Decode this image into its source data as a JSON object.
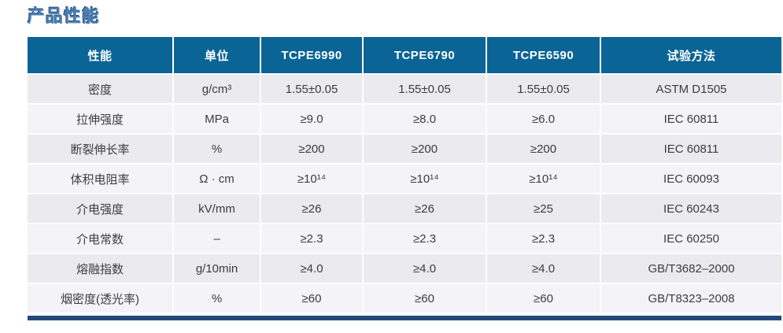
{
  "page_title": "产品性能",
  "colors": {
    "title_blue": "#4b80b5",
    "header_bg": "#0a6496",
    "header_text": "#ffffff",
    "row_odd_bg": "#eaeaef",
    "row_even_bg": "#f3f3f8",
    "body_text": "#3d3d3d",
    "footer_bar": "#24497c"
  },
  "table": {
    "headers": [
      "性能",
      "单位",
      "TCPE6990",
      "TCPE6790",
      "TCPE6590",
      "试验方法"
    ],
    "rows": [
      {
        "cells": [
          "密度",
          "g/cm³",
          "1.55±0.05",
          "1.55±0.05",
          "1.55±0.05",
          "ASTM D1505"
        ]
      },
      {
        "cells": [
          "拉伸强度",
          "MPa",
          "≥9.0",
          "≥8.0",
          "≥6.0",
          "IEC 60811"
        ]
      },
      {
        "cells": [
          "断裂伸长率",
          "%",
          "≥200",
          "≥200",
          "≥200",
          "IEC 60811"
        ]
      },
      {
        "cells": [
          "体积电阻率",
          "Ω · cm",
          "≥10¹⁴",
          "≥10¹⁴",
          "≥10¹⁴",
          "IEC 60093"
        ]
      },
      {
        "cells": [
          "介电强度",
          "kV/mm",
          "≥26",
          "≥26",
          "≥25",
          "IEC 60243"
        ]
      },
      {
        "cells": [
          "介电常数",
          "–",
          "≥2.3",
          "≥2.3",
          "≥2.3",
          "IEC 60250"
        ]
      },
      {
        "cells": [
          "熔融指数",
          "g/10min",
          "≥4.0",
          "≥4.0",
          "≥4.0",
          "GB/T3682–2000"
        ]
      },
      {
        "cells": [
          "烟密度(透光率)",
          "%",
          "≥60",
          "≥60",
          "≥60",
          "GB/T8323–2008"
        ]
      }
    ]
  }
}
